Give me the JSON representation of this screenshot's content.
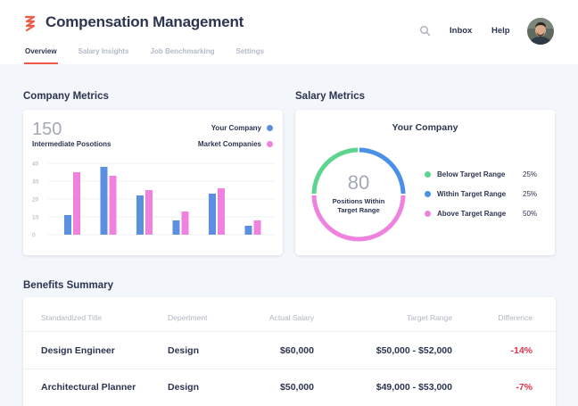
{
  "header": {
    "title": "Compensation Management",
    "tabs": [
      {
        "label": "Overview",
        "active": true
      },
      {
        "label": "Salary Insights",
        "active": false
      },
      {
        "label": "Job Benchmarking",
        "active": false
      },
      {
        "label": "Settings",
        "active": false
      }
    ],
    "inbox_label": "Inbox",
    "help_label": "Help",
    "accent_color": "#ef5a48"
  },
  "company_metrics": {
    "title": "Company Metrics",
    "big_number": "150",
    "subtitle": "Intermediate Posotions",
    "legend": [
      {
        "label": "Your Company",
        "color": "#5b8fe0"
      },
      {
        "label": "Market Companies",
        "color": "#ef82df"
      }
    ]
  },
  "chart_data": {
    "type": "bar",
    "categories": [
      "",
      "",
      "",
      "",
      "",
      ""
    ],
    "series": [
      {
        "name": "Your Company",
        "values": [
          11,
          38,
          22,
          8,
          23,
          5
        ]
      },
      {
        "name": "Market Companies",
        "values": [
          35,
          33,
          25,
          13,
          26,
          8
        ]
      }
    ],
    "yticks": [
      "40",
      "30",
      "20",
      "10",
      "0"
    ],
    "ylim": [
      0,
      40
    ],
    "grid": true,
    "legend_position": "top-right",
    "colors": [
      "#5b8fe0",
      "#ef82df"
    ]
  },
  "salary_metrics": {
    "title": "Salary Metrics",
    "card_title": "Your Company",
    "donut_value": "80",
    "donut_label_1": "Positions Within",
    "donut_label_2": "Target Range",
    "legend": [
      {
        "label": "Below Target Range",
        "pct": "25%",
        "value": 25,
        "color": "#5dd58e"
      },
      {
        "label": "Within Target Range",
        "pct": "25%",
        "value": 25,
        "color": "#4a8fe8"
      },
      {
        "label": "Above Target Range",
        "pct": "50%",
        "value": 50,
        "color": "#ef82df"
      }
    ]
  },
  "benefits": {
    "title": "Benefits Summary",
    "columns": [
      "Standardized Title",
      "Depertment",
      "Actual Salary",
      "Target Range",
      "Difference"
    ],
    "rows": [
      {
        "title": "Design Engineer",
        "department": "Design",
        "salary": "$60,000",
        "range": "$50,000 - $52,000",
        "diff": "-14%"
      },
      {
        "title": "Architectural Planner",
        "department": "Design",
        "salary": "$50,000",
        "range": "$49,000 - $53,000",
        "diff": "-7%"
      }
    ]
  }
}
